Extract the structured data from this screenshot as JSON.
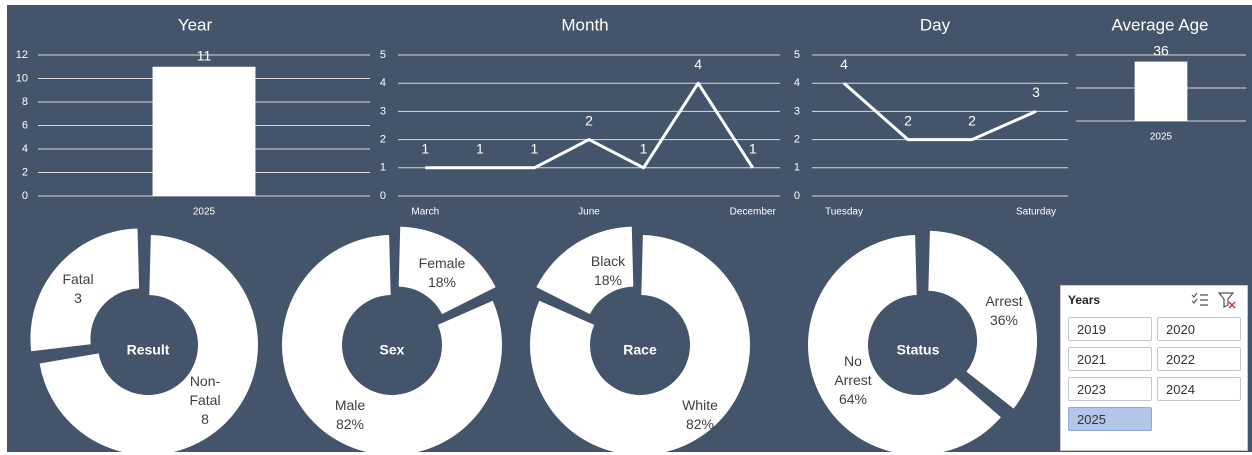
{
  "chart_data": [
    {
      "type": "bar",
      "title": "Year",
      "categories": [
        "2025"
      ],
      "values": [
        11
      ],
      "color": "#ffffff",
      "ylim": [
        0,
        12
      ],
      "yticks": [
        0,
        2,
        4,
        6,
        8,
        10,
        12
      ],
      "grid": true,
      "data_labels": true,
      "tick_labels": true
    },
    {
      "type": "line",
      "title": "Month",
      "categories": [
        "March",
        null,
        null,
        "June",
        null,
        null,
        "December"
      ],
      "values": [
        1,
        1,
        1,
        2,
        1,
        4,
        1
      ],
      "color": "#ffffff",
      "ylim": [
        0,
        5
      ],
      "yticks": [
        0,
        1,
        2,
        3,
        4,
        5
      ],
      "grid": true,
      "data_labels": true,
      "tick_labels": true
    },
    {
      "type": "line",
      "title": "Day",
      "categories": [
        "Tuesday",
        null,
        null,
        "Saturday"
      ],
      "values": [
        4,
        2,
        2,
        3
      ],
      "color": "#ffffff",
      "ylim": [
        0,
        5
      ],
      "yticks": [
        0,
        1,
        2,
        3,
        4,
        5
      ],
      "grid": true,
      "data_labels": true,
      "tick_labels": true
    },
    {
      "type": "bar",
      "title": "Average Age",
      "categories": [
        "2025"
      ],
      "values": [
        36
      ],
      "color": "#ffffff",
      "ylim": [
        0,
        40
      ],
      "yticks": [
        0,
        20,
        40
      ],
      "grid": true,
      "data_labels": true,
      "tick_labels": false
    },
    {
      "type": "donut",
      "title": "Result",
      "categories": [
        "Fatal",
        "Non-Fatal"
      ],
      "values": [
        3,
        8
      ],
      "color": "#ffffff"
    },
    {
      "type": "donut",
      "title": "Sex",
      "categories": [
        "Female",
        "Male"
      ],
      "values": [
        18,
        82
      ],
      "value_labels": [
        "18%",
        "82%"
      ],
      "color": "#ffffff"
    },
    {
      "type": "donut",
      "title": "Race",
      "categories": [
        "Black",
        "White"
      ],
      "values": [
        18,
        82
      ],
      "value_labels": [
        "18%",
        "82%"
      ],
      "color": "#ffffff"
    },
    {
      "type": "donut",
      "title": "Status",
      "categories": [
        "Arrest",
        "No Arrest"
      ],
      "values": [
        36,
        64
      ],
      "value_labels": [
        "36%",
        "64%"
      ],
      "color": "#ffffff"
    }
  ],
  "slicer": {
    "title": "Years",
    "items": [
      "2019",
      "2020",
      "2021",
      "2022",
      "2023",
      "2024",
      "2025"
    ],
    "selected": "2025"
  }
}
